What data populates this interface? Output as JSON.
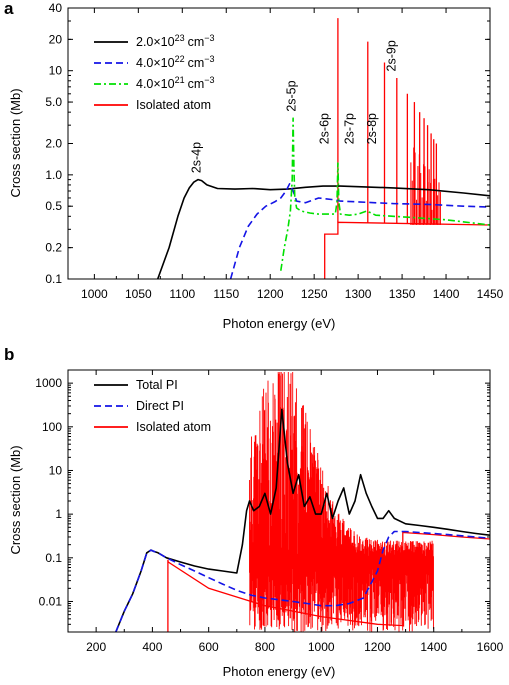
{
  "chart_data": [
    {
      "panel_label": "a",
      "type": "line",
      "xlabel": "Photon energy (eV)",
      "ylabel": "Cross section (Mb)",
      "x_scale": "linear",
      "y_scale": "log",
      "xlim": [
        970,
        1450
      ],
      "ylim": [
        0.1,
        40
      ],
      "x_ticks": [
        "1000",
        "1050",
        "1100",
        "1150",
        "1200",
        "1250",
        "1300",
        "1350",
        "1400",
        "1450"
      ],
      "x_tick_values": [
        1000,
        1050,
        1100,
        1150,
        1200,
        1250,
        1300,
        1350,
        1400,
        1450
      ],
      "y_ticks": [
        "0.1",
        "0.2",
        "0.5",
        "1.0",
        "2.0",
        "5.0",
        "10",
        "20",
        "40"
      ],
      "y_tick_values": [
        0.1,
        0.2,
        0.5,
        1.0,
        2.0,
        5.0,
        10,
        20,
        40
      ],
      "legend": "top-left",
      "series": [
        {
          "name": "2.0×10",
          "sup": "23",
          "unit": "cm",
          "unit_sup": "−3",
          "color": "#000000",
          "dash": "solid",
          "x": [
            1072,
            1085,
            1095,
            1102,
            1108,
            1113,
            1118,
            1122,
            1128,
            1140,
            1160,
            1180,
            1200,
            1220,
            1240,
            1260,
            1280,
            1300,
            1340,
            1380,
            1420,
            1450
          ],
          "y": [
            0.1,
            0.2,
            0.4,
            0.6,
            0.75,
            0.85,
            0.9,
            0.88,
            0.8,
            0.74,
            0.73,
            0.74,
            0.72,
            0.73,
            0.76,
            0.78,
            0.78,
            0.77,
            0.75,
            0.72,
            0.67,
            0.63
          ]
        },
        {
          "name": "4.0×10",
          "sup": "22",
          "unit": "cm",
          "unit_sup": "−3",
          "color": "#1414e6",
          "dash": "dash",
          "x": [
            1155,
            1165,
            1175,
            1185,
            1195,
            1205,
            1212,
            1218,
            1222,
            1226,
            1230,
            1240,
            1255,
            1270,
            1280,
            1300,
            1340,
            1380,
            1420,
            1450
          ],
          "y": [
            0.1,
            0.2,
            0.32,
            0.42,
            0.5,
            0.55,
            0.6,
            0.7,
            0.82,
            0.7,
            0.56,
            0.54,
            0.6,
            0.58,
            0.56,
            0.55,
            0.53,
            0.52,
            0.5,
            0.49
          ]
        },
        {
          "name": "4.0×10",
          "sup": "21",
          "unit": "cm",
          "unit_sup": "−3",
          "color": "#00e000",
          "dash": "dashdot",
          "x": [
            1212,
            1216,
            1220,
            1223,
            1225,
            1226,
            1227,
            1228,
            1230,
            1235,
            1245,
            1255,
            1265,
            1274,
            1276,
            1277,
            1278,
            1280,
            1290,
            1300,
            1310,
            1320,
            1340,
            1360,
            1380,
            1400,
            1450
          ],
          "y": [
            0.12,
            0.2,
            0.3,
            0.45,
            0.9,
            3.5,
            1.2,
            0.6,
            0.48,
            0.45,
            0.43,
            0.42,
            0.42,
            0.42,
            0.55,
            1.3,
            0.55,
            0.42,
            0.41,
            0.42,
            0.45,
            0.41,
            0.4,
            0.39,
            0.38,
            0.37,
            0.33
          ]
        },
        {
          "name": "Isolated atom",
          "color": "#ff0000",
          "dash": "solid",
          "continuum": {
            "x": [
              1262,
              1262,
              1277,
              1277,
              1450
            ],
            "y": [
              0.1,
              0.27,
              0.27,
              0.35,
              0.33
            ]
          },
          "peaks": {
            "x": [
              1277,
              1311,
              1330,
              1344,
              1356,
              1364,
              1370,
              1375,
              1379,
              1383,
              1386,
              1389
            ],
            "y": [
              32,
              19,
              12,
              8.5,
              6,
              5,
              4,
              3.5,
              3,
              2.5,
              2.2,
              2
            ]
          }
        }
      ],
      "annotations": [
        {
          "text": "2s-4p",
          "x": 1116,
          "y": 0.95
        },
        {
          "text": "2s-5p",
          "x": 1224,
          "y": 3.7
        },
        {
          "text": "2s-6p",
          "x": 1262,
          "y": 1.8
        },
        {
          "text": "2s-7p",
          "x": 1290,
          "y": 1.8
        },
        {
          "text": "2s-8p",
          "x": 1316,
          "y": 1.8
        },
        {
          "text": "2s-9p",
          "x": 1338,
          "y": 9
        }
      ]
    },
    {
      "panel_label": "b",
      "type": "line",
      "xlabel": "Photon energy (eV)",
      "ylabel": "Cross section (Mb)",
      "x_scale": "linear",
      "y_scale": "log",
      "xlim": [
        100,
        1600
      ],
      "ylim": [
        0.002,
        2000
      ],
      "x_ticks": [
        "200",
        "400",
        "600",
        "800",
        "1000",
        "1200",
        "1400",
        "1600"
      ],
      "x_tick_values": [
        200,
        400,
        600,
        800,
        1000,
        1200,
        1400,
        1600
      ],
      "y_ticks": [
        "0.01",
        "0.1",
        "1",
        "10",
        "100",
        "1000"
      ],
      "y_tick_values": [
        0.01,
        0.1,
        1,
        10,
        100,
        1000
      ],
      "legend": "top-left",
      "series": [
        {
          "name": "Total PI",
          "color": "#000000",
          "dash": "solid",
          "x": [
            270,
            300,
            330,
            360,
            380,
            395,
            405,
            420,
            450,
            500,
            550,
            600,
            650,
            700,
            720,
            735,
            745,
            760,
            780,
            800,
            820,
            840,
            860,
            880,
            900,
            920,
            940,
            960,
            980,
            1000,
            1020,
            1040,
            1060,
            1080,
            1100,
            1120,
            1140,
            1160,
            1180,
            1200,
            1220,
            1240,
            1260,
            1300,
            1350,
            1400,
            1450,
            1500,
            1550,
            1600
          ],
          "y": [
            0.002,
            0.006,
            0.015,
            0.05,
            0.13,
            0.15,
            0.14,
            0.13,
            0.1,
            0.08,
            0.065,
            0.055,
            0.05,
            0.045,
            0.2,
            1.2,
            2,
            1.2,
            1.5,
            3,
            1,
            4,
            250,
            15,
            3,
            8,
            1.5,
            2.5,
            1,
            1,
            3,
            0.8,
            2,
            4,
            1,
            2,
            8,
            3,
            1.5,
            0.8,
            0.8,
            1.2,
            0.8,
            0.6,
            0.55,
            0.5,
            0.45,
            0.4,
            0.36,
            0.33
          ]
        },
        {
          "name": "Direct PI",
          "color": "#1414e6",
          "dash": "dash",
          "x": [
            270,
            300,
            330,
            360,
            380,
            395,
            405,
            420,
            450,
            500,
            550,
            600,
            650,
            700,
            750,
            800,
            850,
            900,
            950,
            1000,
            1050,
            1100,
            1150,
            1200,
            1220,
            1240,
            1260,
            1280,
            1300,
            1350,
            1400,
            1450,
            1500,
            1550,
            1600
          ],
          "y": [
            0.002,
            0.006,
            0.015,
            0.05,
            0.13,
            0.15,
            0.14,
            0.13,
            0.1,
            0.07,
            0.05,
            0.035,
            0.025,
            0.018,
            0.014,
            0.012,
            0.011,
            0.01,
            0.009,
            0.008,
            0.008,
            0.009,
            0.012,
            0.05,
            0.15,
            0.3,
            0.4,
            0.4,
            0.4,
            0.38,
            0.36,
            0.34,
            0.32,
            0.3,
            0.28
          ]
        },
        {
          "name": "Isolated atom",
          "color": "#ff0000",
          "dash": "solid",
          "continuum": {
            "x": [
              455,
              455,
              456,
              600,
              800,
              1000,
              1200,
              1290,
              1290,
              1292,
              1400,
              1500,
              1600
            ],
            "y": [
              0.002,
              0.09,
              0.08,
              0.02,
              0.008,
              0.0045,
              0.003,
              0.0028,
              0.4,
              0.38,
              0.34,
              0.3,
              0.27
            ]
          },
          "band": {
            "x_start": 745,
            "x_end": 1400,
            "peak_max": 1800,
            "peak_min": 0.002
          }
        }
      ]
    }
  ]
}
